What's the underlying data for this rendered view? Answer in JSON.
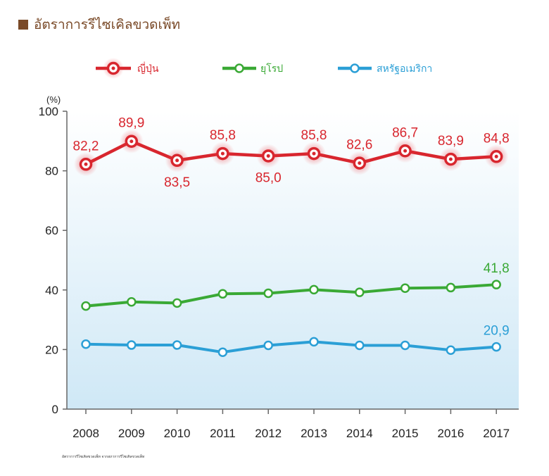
{
  "title": "อัตราการรีไซเคิลขวดเพ็ท",
  "footnote": "อัตราการรีไซเคิลขวดเพ็ท จากสภาการรีไซเคิลขวดเพ็ท",
  "colors": {
    "title_square": "#7a4a28",
    "japan": "#d8262e",
    "europe": "#3aa935",
    "usa": "#2b9fd6"
  },
  "chart_data": {
    "type": "line",
    "ylabel": "(%)",
    "ylim": [
      0,
      100
    ],
    "yticks": [
      0,
      20,
      40,
      60,
      80,
      100
    ],
    "categories": [
      "2008",
      "2009",
      "2010",
      "2011",
      "2012",
      "2013",
      "2014",
      "2015",
      "2016",
      "2017"
    ],
    "legend_position": "top",
    "series": [
      {
        "name": "ญี่ปุ่น",
        "color": "#d8262e",
        "values": [
          82.2,
          89.9,
          83.5,
          85.8,
          85.0,
          85.8,
          82.6,
          86.7,
          83.9,
          84.8
        ],
        "labels": [
          "82,2",
          "89,9",
          "83,5",
          "85,8",
          "85,0",
          "85,8",
          "82,6",
          "86,7",
          "83,9",
          "84,8"
        ]
      },
      {
        "name": "ยุโรป",
        "color": "#3aa935",
        "values": [
          34.6,
          36.0,
          35.6,
          38.7,
          38.9,
          40.1,
          39.2,
          40.6,
          40.8,
          41.8
        ],
        "labels": [
          "",
          "",
          "",
          "",
          "",
          "",
          "",
          "",
          "",
          "41,8"
        ]
      },
      {
        "name": "สหรัฐอเมริกา",
        "color": "#2b9fd6",
        "values": [
          21.8,
          21.5,
          21.5,
          19.1,
          21.4,
          22.6,
          21.4,
          21.4,
          19.8,
          20.9
        ],
        "labels": [
          "",
          "",
          "",
          "",
          "",
          "",
          "",
          "",
          "",
          "20,9"
        ]
      }
    ]
  }
}
